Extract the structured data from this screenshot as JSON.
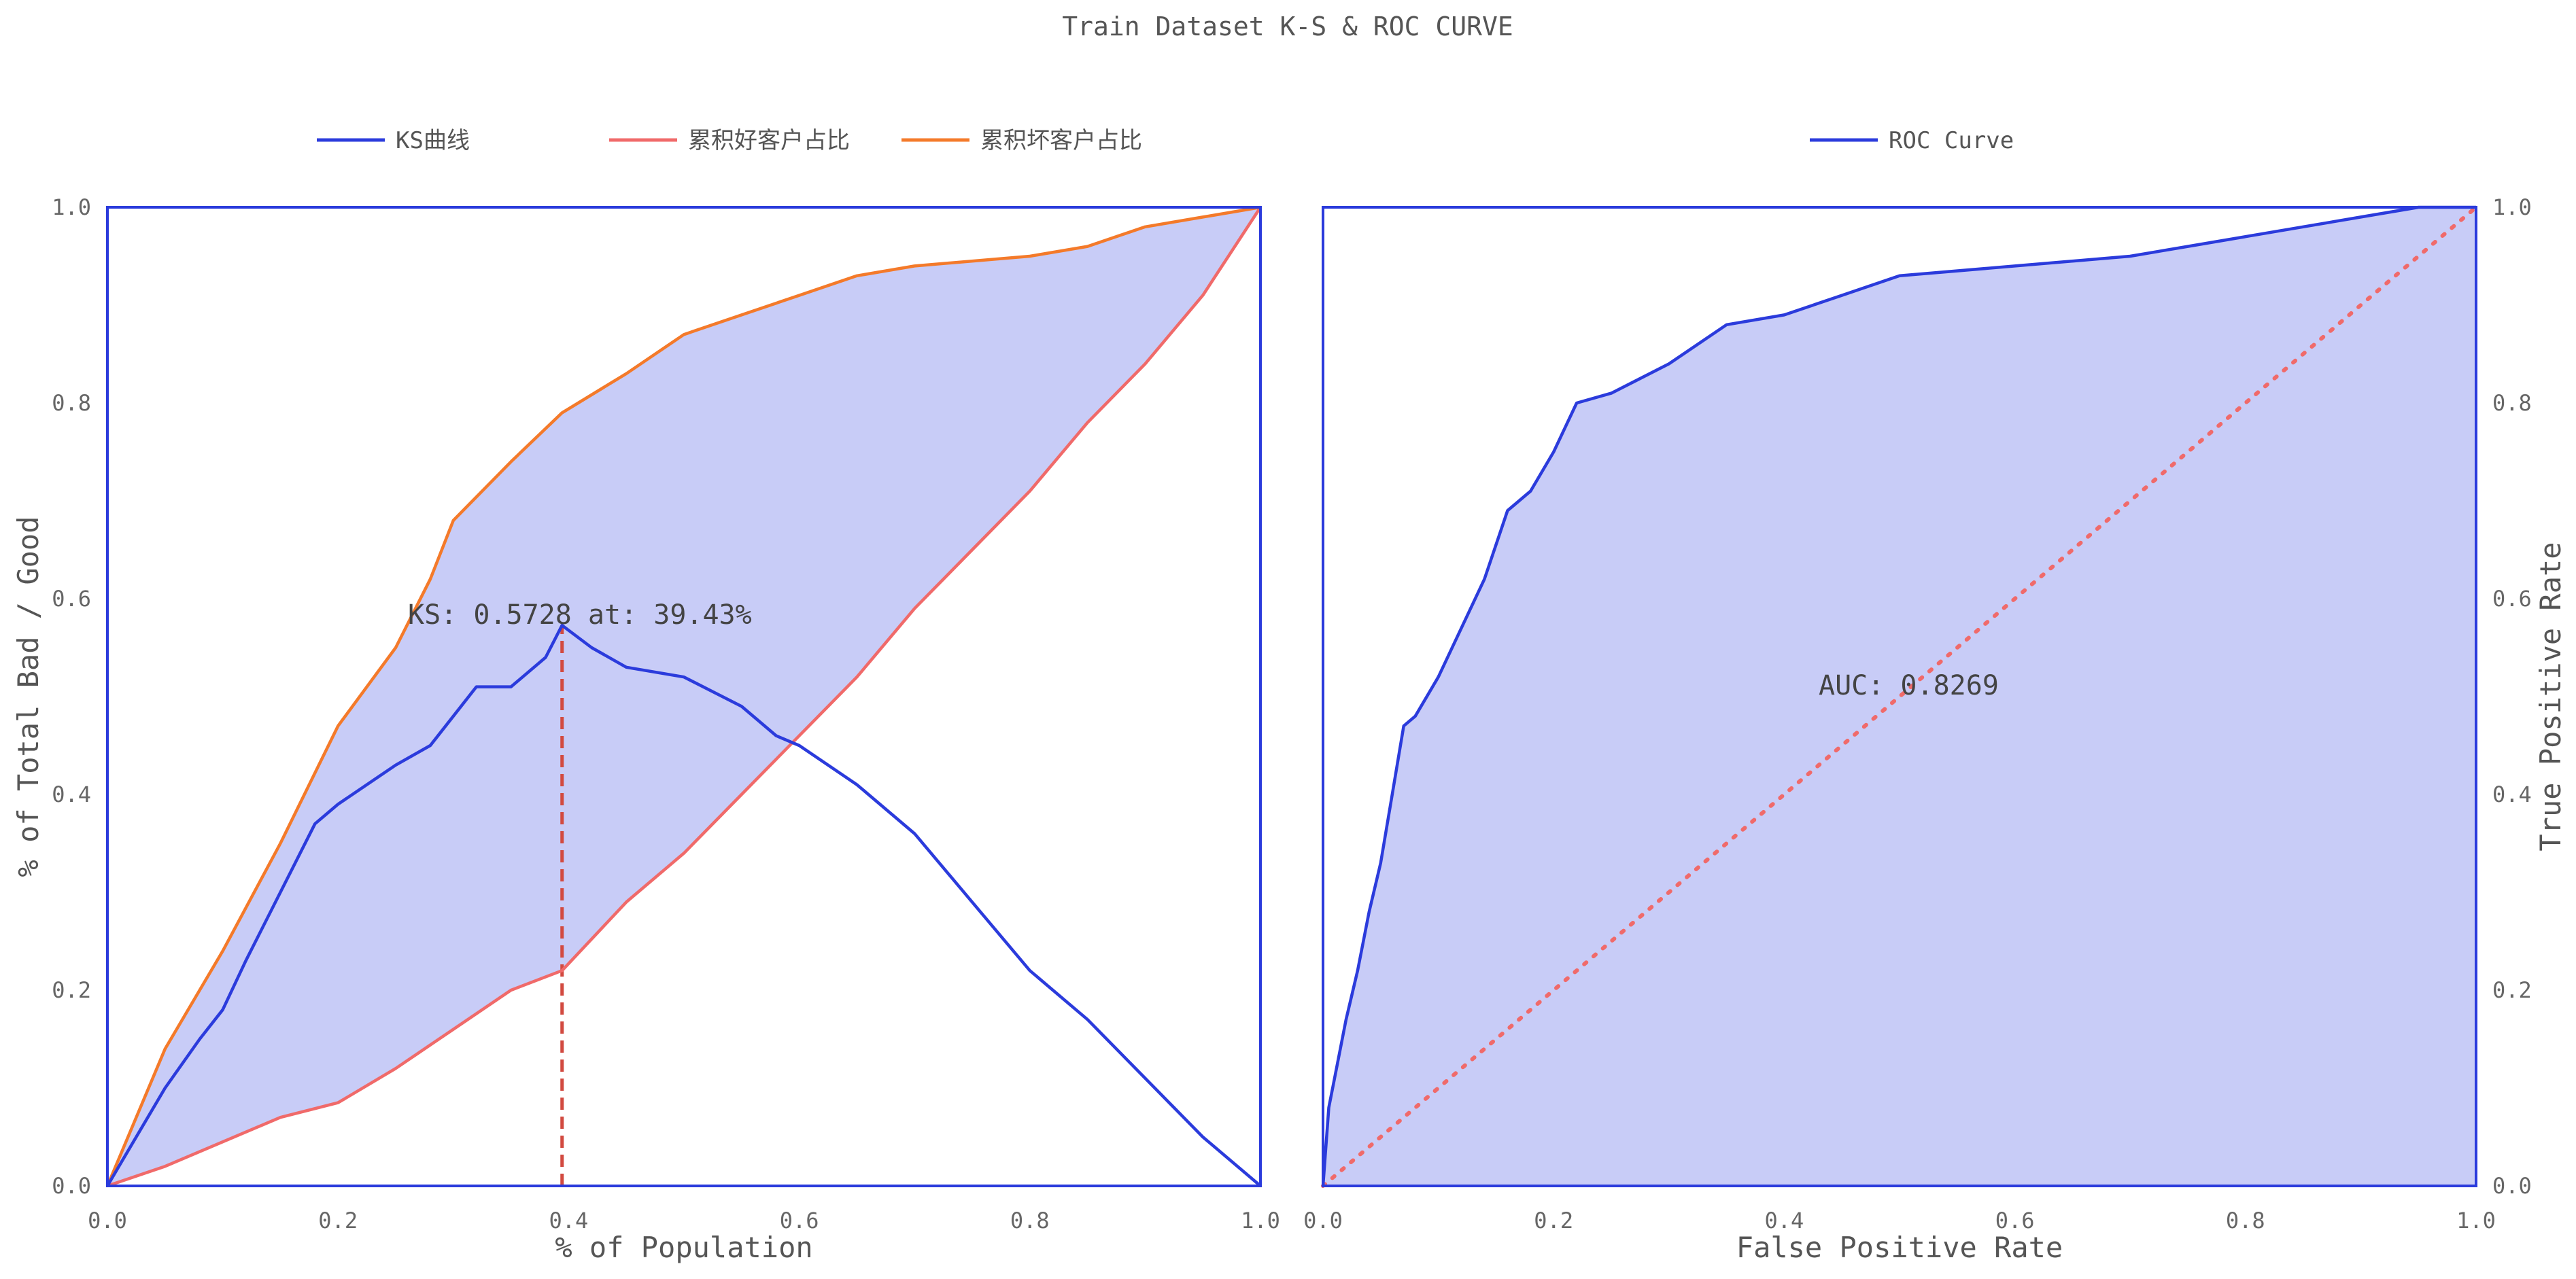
{
  "figure_title": "Train Dataset K-S & ROC CURVE",
  "colors": {
    "blue": "#2b3bdc",
    "red": "#f06a6a",
    "orange": "#f47a2a",
    "fill": "#c8ccf7",
    "frame": "#2b3bdc",
    "ks_marker": "#d24a40"
  },
  "chart_data": [
    {
      "type": "line",
      "xlabel": "% of Population",
      "ylabel": "% of Total Bad / Good",
      "xlim": [
        0,
        1
      ],
      "ylim": [
        0,
        1
      ],
      "x_ticks": [
        "0.0",
        "0.2",
        "0.4",
        "0.6",
        "0.8",
        "1.0"
      ],
      "y_ticks": [
        "0.0",
        "0.2",
        "0.4",
        "0.6",
        "0.8",
        "1.0"
      ],
      "grid": false,
      "legend_placement": "top-left, above plot",
      "fill_between": [
        "累积坏客户占比",
        "累积好客户占比"
      ],
      "annotation": {
        "text": "KS: 0.5728 at: 39.43%",
        "x": 0.3943,
        "y": 0.5728
      },
      "marker_line": {
        "x": 0.3943,
        "y_from": 0.0,
        "y_to": 0.5728,
        "style": "dashed"
      },
      "series": [
        {
          "name": "KS曲线",
          "color": "#2b3bdc",
          "x": [
            0,
            0.02,
            0.05,
            0.08,
            0.1,
            0.12,
            0.15,
            0.18,
            0.2,
            0.25,
            0.28,
            0.3,
            0.32,
            0.35,
            0.38,
            0.3943,
            0.42,
            0.45,
            0.5,
            0.55,
            0.58,
            0.6,
            0.65,
            0.7,
            0.75,
            0.8,
            0.85,
            0.9,
            0.95,
            1.0
          ],
          "y": [
            0,
            0.04,
            0.1,
            0.15,
            0.18,
            0.23,
            0.3,
            0.37,
            0.39,
            0.43,
            0.45,
            0.48,
            0.51,
            0.51,
            0.54,
            0.5728,
            0.55,
            0.53,
            0.52,
            0.49,
            0.46,
            0.45,
            0.41,
            0.36,
            0.29,
            0.22,
            0.17,
            0.11,
            0.05,
            0.0
          ]
        },
        {
          "name": "累积好客户占比",
          "color": "#f06a6a",
          "x": [
            0,
            0.05,
            0.1,
            0.15,
            0.2,
            0.25,
            0.3,
            0.35,
            0.3943,
            0.45,
            0.5,
            0.55,
            0.6,
            0.65,
            0.7,
            0.75,
            0.8,
            0.85,
            0.9,
            0.95,
            1.0
          ],
          "y": [
            0,
            0.02,
            0.045,
            0.07,
            0.085,
            0.12,
            0.16,
            0.2,
            0.22,
            0.29,
            0.34,
            0.4,
            0.46,
            0.52,
            0.59,
            0.65,
            0.71,
            0.78,
            0.84,
            0.91,
            1.0
          ]
        },
        {
          "name": "累积坏客户占比",
          "color": "#f47a2a",
          "x": [
            0,
            0.05,
            0.1,
            0.15,
            0.2,
            0.25,
            0.28,
            0.3,
            0.35,
            0.3943,
            0.45,
            0.5,
            0.55,
            0.6,
            0.65,
            0.7,
            0.8,
            0.85,
            0.9,
            0.95,
            1.0
          ],
          "y": [
            0,
            0.14,
            0.24,
            0.35,
            0.47,
            0.55,
            0.62,
            0.68,
            0.74,
            0.79,
            0.83,
            0.87,
            0.89,
            0.91,
            0.93,
            0.94,
            0.95,
            0.96,
            0.98,
            0.99,
            1.0
          ]
        }
      ]
    },
    {
      "type": "line",
      "xlabel": "False Positive Rate",
      "ylabel": "True Positive Rate",
      "xlim": [
        0,
        1
      ],
      "ylim": [
        0,
        1
      ],
      "x_ticks": [
        "0.0",
        "0.2",
        "0.4",
        "0.6",
        "0.8",
        "1.0"
      ],
      "y_ticks": [
        "0.0",
        "0.2",
        "0.4",
        "0.6",
        "0.8",
        "1.0"
      ],
      "y_axis_side": "right",
      "grid": false,
      "legend_placement": "top-center, above plot",
      "annotation": {
        "text": "AUC: 0.8269",
        "x": 0.43,
        "y": 0.51
      },
      "diagonal": {
        "color": "#f06a6a",
        "style": "dotted"
      },
      "series": [
        {
          "name": "ROC Curve",
          "color": "#2b3bdc",
          "filled": true,
          "x": [
            0,
            0.005,
            0.01,
            0.02,
            0.03,
            0.04,
            0.05,
            0.06,
            0.07,
            0.08,
            0.1,
            0.12,
            0.14,
            0.16,
            0.18,
            0.2,
            0.22,
            0.25,
            0.3,
            0.35,
            0.4,
            0.45,
            0.5,
            0.6,
            0.7,
            0.75,
            0.8,
            0.9,
            0.95,
            1.0
          ],
          "y": [
            0,
            0.08,
            0.11,
            0.17,
            0.22,
            0.28,
            0.33,
            0.4,
            0.47,
            0.48,
            0.52,
            0.57,
            0.62,
            0.69,
            0.71,
            0.75,
            0.8,
            0.81,
            0.84,
            0.88,
            0.89,
            0.91,
            0.93,
            0.94,
            0.95,
            0.96,
            0.97,
            0.99,
            1.0,
            1.0
          ]
        }
      ]
    }
  ]
}
